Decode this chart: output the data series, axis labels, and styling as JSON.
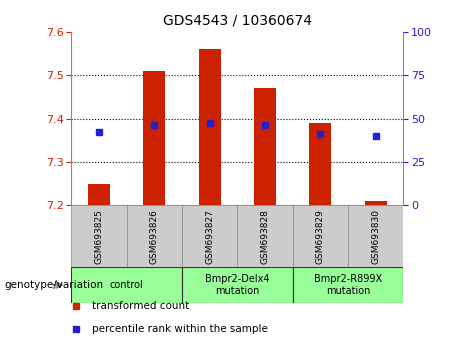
{
  "title": "GDS4543 / 10360674",
  "samples": [
    "GSM693825",
    "GSM693826",
    "GSM693827",
    "GSM693828",
    "GSM693829",
    "GSM693830"
  ],
  "bar_values": [
    7.25,
    7.51,
    7.56,
    7.47,
    7.39,
    7.21
  ],
  "bar_bottom": 7.2,
  "percentile_values": [
    7.37,
    7.385,
    7.39,
    7.385,
    7.365,
    7.36
  ],
  "ylim": [
    7.2,
    7.6
  ],
  "yticks_left": [
    7.2,
    7.3,
    7.4,
    7.5,
    7.6
  ],
  "yticks_right": [
    0,
    25,
    50,
    75,
    100
  ],
  "bar_color": "#cc2200",
  "percentile_color": "#2222cc",
  "axis_color_left": "#cc2200",
  "axis_color_right": "#2222cc",
  "groups": [
    {
      "label": "control",
      "samples": [
        0,
        1
      ],
      "color": "#99ff99"
    },
    {
      "label": "Bmpr2-Delx4\nmutation",
      "samples": [
        2,
        3
      ],
      "color": "#99ff99"
    },
    {
      "label": "Bmpr2-R899X\nmutation",
      "samples": [
        4,
        5
      ],
      "color": "#99ff99"
    }
  ],
  "genotype_label": "genotype/variation",
  "legend_items": [
    {
      "label": "transformed count",
      "color": "#cc2200"
    },
    {
      "label": "percentile rank within the sample",
      "color": "#2222cc"
    }
  ],
  "bar_width": 0.4,
  "grid_yticks": [
    7.3,
    7.4,
    7.5
  ]
}
